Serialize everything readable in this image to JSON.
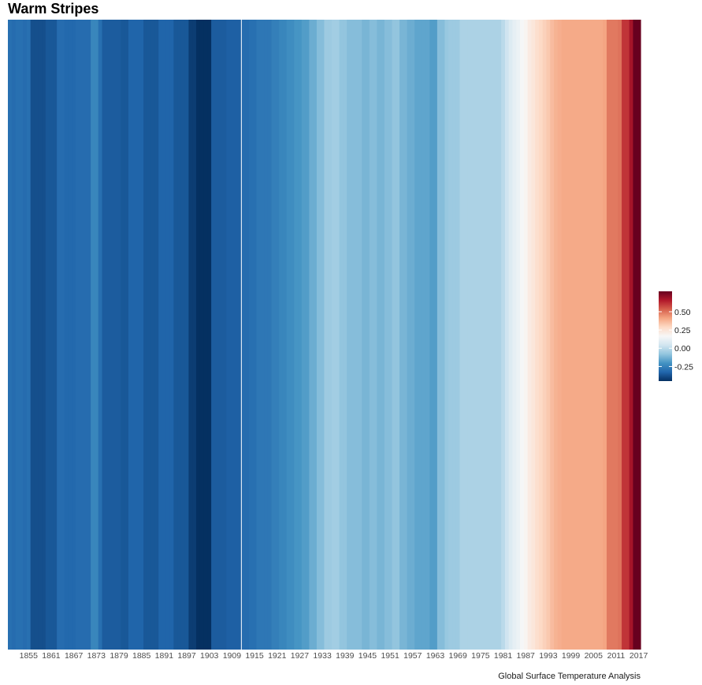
{
  "chart_data": {
    "type": "heatmap",
    "title": "Warm Stripes",
    "caption": "Global Surface Temperature Analysis",
    "xlabel": "",
    "ylabel": "",
    "grid": false,
    "legend_position": "right",
    "x_start": 1850,
    "x_end": 2018,
    "x_ticks": [
      1855,
      1861,
      1867,
      1873,
      1879,
      1885,
      1891,
      1897,
      1903,
      1909,
      1915,
      1921,
      1927,
      1933,
      1939,
      1945,
      1951,
      1957,
      1963,
      1969,
      1975,
      1981,
      1987,
      1993,
      1999,
      2005,
      2011,
      2017
    ],
    "x_tick_labels": [
      "1855",
      "1861",
      "1867",
      "1873",
      "1879",
      "1885",
      "1891",
      "1897",
      "1903",
      "1909",
      "1915",
      "1921",
      "1927",
      "1933",
      "1939",
      "1945",
      "1951",
      "1957",
      "1963",
      "1969",
      "1975",
      "1981",
      "1987",
      "1993",
      "1999",
      "2005",
      "2011",
      "2017"
    ],
    "color_scale": {
      "min": -0.45,
      "max": 0.78,
      "colors": [
        "#053061",
        "#2166ac",
        "#4393c3",
        "#92c5de",
        "#d1e5f0",
        "#f7f7f7",
        "#fddbc7",
        "#f4a582",
        "#d6604d",
        "#b2182b",
        "#67001f"
      ],
      "ticks": [
        0.5,
        0.25,
        0.0,
        -0.25
      ],
      "tick_labels": [
        "0.50",
        "0.25",
        "0.00",
        "-0.25"
      ]
    },
    "series": [
      {
        "values": [
          -0.3,
          -0.31,
          -0.3,
          -0.3,
          -0.31,
          -0.3,
          -0.38,
          -0.38,
          -0.38,
          -0.38,
          -0.36,
          -0.36,
          -0.36,
          -0.31,
          -0.31,
          -0.32,
          -0.32,
          -0.32,
          -0.31,
          -0.31,
          -0.31,
          -0.31,
          -0.24,
          -0.24,
          -0.3,
          -0.35,
          -0.35,
          -0.35,
          -0.35,
          -0.35,
          -0.36,
          -0.36,
          -0.33,
          -0.33,
          -0.33,
          -0.33,
          -0.36,
          -0.36,
          -0.36,
          -0.36,
          -0.33,
          -0.33,
          -0.33,
          -0.33,
          -0.36,
          -0.36,
          -0.36,
          -0.36,
          -0.42,
          -0.42,
          -0.46,
          -0.46,
          -0.46,
          -0.46,
          -0.35,
          -0.35,
          -0.35,
          -0.35,
          -0.34,
          -0.34,
          -0.34,
          -0.34,
          -0.31,
          -0.31,
          -0.3,
          -0.3,
          -0.28,
          -0.28,
          -0.28,
          -0.28,
          -0.26,
          -0.26,
          -0.24,
          -0.24,
          -0.22,
          -0.22,
          -0.2,
          -0.2,
          -0.18,
          -0.18,
          -0.14,
          -0.14,
          -0.1,
          -0.1,
          -0.06,
          -0.06,
          -0.05,
          -0.05,
          -0.08,
          -0.08,
          -0.1,
          -0.1,
          -0.1,
          -0.1,
          -0.12,
          -0.12,
          -0.1,
          -0.1,
          -0.12,
          -0.12,
          -0.1,
          -0.1,
          -0.08,
          -0.08,
          -0.12,
          -0.12,
          -0.14,
          -0.14,
          -0.16,
          -0.16,
          -0.16,
          -0.16,
          -0.18,
          -0.18,
          -0.1,
          -0.1,
          -0.07,
          -0.06,
          -0.06,
          -0.06,
          -0.03,
          -0.03,
          -0.03,
          -0.03,
          -0.03,
          -0.03,
          -0.03,
          -0.03,
          -0.03,
          -0.03,
          -0.03,
          0.0,
          0.04,
          0.08,
          0.11,
          0.13,
          0.16,
          0.18,
          0.22,
          0.24,
          0.27,
          0.29,
          0.31,
          0.33,
          0.36,
          0.38,
          0.39,
          0.4,
          0.4,
          0.4,
          0.4,
          0.4,
          0.4,
          0.4,
          0.4,
          0.4,
          0.4,
          0.4,
          0.41,
          0.49,
          0.49,
          0.49,
          0.5,
          0.61,
          0.61,
          0.68,
          0.78,
          0.78
        ]
      }
    ]
  }
}
